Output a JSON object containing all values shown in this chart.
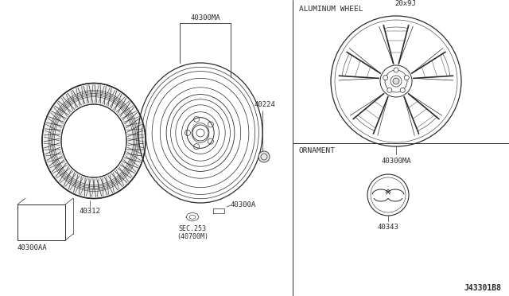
{
  "bg_color": "#ffffff",
  "line_color": "#2a2a2a",
  "diagram_id": "J43301B8",
  "parts": {
    "tire_label": "40312",
    "wheel_label": "40300MA",
    "valve_label": "40224",
    "ornament_box_label": "40300AA",
    "sensor_label": "40300A",
    "sensor_ref": "SEC.253\n(40700M)",
    "al_wheel_label": "40300MA",
    "al_wheel_size": "20x9J",
    "al_wheel_section": "ALUMINUM WHEEL",
    "ornament_section": "ORNAMENT",
    "ornament_label": "40343"
  },
  "font_size_label": 6.5,
  "font_size_section": 6.8
}
